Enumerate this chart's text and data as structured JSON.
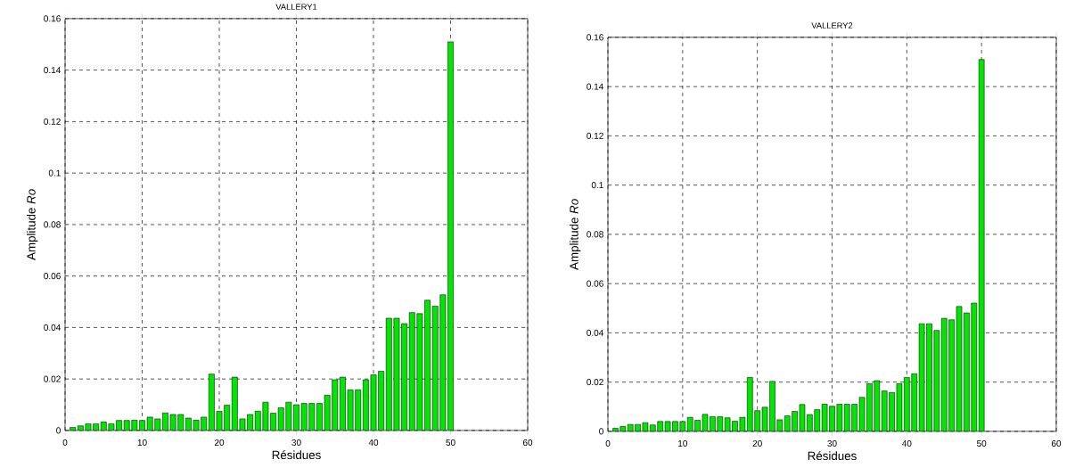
{
  "chart_data": [
    {
      "type": "bar",
      "title": "VALLERY1",
      "xlabel": "Résidues",
      "ylabel": "Amplitude *Ro*",
      "color": "#00e600",
      "x": [
        1,
        2,
        3,
        4,
        5,
        6,
        7,
        8,
        9,
        10,
        11,
        12,
        13,
        14,
        15,
        16,
        17,
        18,
        19,
        20,
        21,
        22,
        23,
        24,
        25,
        26,
        27,
        28,
        29,
        30,
        31,
        32,
        33,
        34,
        35,
        36,
        37,
        38,
        39,
        40,
        41,
        42,
        43,
        44,
        45,
        46,
        47,
        48,
        49,
        50
      ],
      "values": [
        0.0012,
        0.0018,
        0.0026,
        0.0026,
        0.0033,
        0.0026,
        0.0039,
        0.0039,
        0.004,
        0.0039,
        0.0052,
        0.0045,
        0.0068,
        0.0062,
        0.0062,
        0.0048,
        0.004,
        0.0052,
        0.0219,
        0.0074,
        0.0098,
        0.0207,
        0.0045,
        0.0062,
        0.0075,
        0.011,
        0.0067,
        0.0088,
        0.011,
        0.01,
        0.0105,
        0.0105,
        0.0105,
        0.0137,
        0.0197,
        0.0207,
        0.0158,
        0.0158,
        0.0197,
        0.0216,
        0.023,
        0.0436,
        0.0436,
        0.0415,
        0.0458,
        0.0454,
        0.0506,
        0.0483,
        0.0527,
        0.151
      ],
      "xlim": [
        0,
        60
      ],
      "ylim": [
        0,
        0.16
      ],
      "xticks": [
        0,
        10,
        20,
        30,
        40,
        50,
        60
      ],
      "yticks": [
        0,
        0.02,
        0.04,
        0.06,
        0.08,
        0.1,
        0.12,
        0.14,
        0.16
      ],
      "grid": true
    },
    {
      "type": "bar",
      "title": "VALLERY2",
      "xlabel": "Résidues",
      "ylabel": "Amplitude *Ro*",
      "color": "#00e600",
      "x": [
        1,
        2,
        3,
        4,
        5,
        6,
        7,
        8,
        9,
        10,
        11,
        12,
        13,
        14,
        15,
        16,
        17,
        18,
        19,
        20,
        21,
        22,
        23,
        24,
        25,
        26,
        27,
        28,
        29,
        30,
        31,
        32,
        33,
        34,
        35,
        36,
        37,
        38,
        39,
        40,
        41,
        42,
        43,
        44,
        45,
        46,
        47,
        48,
        49,
        50
      ],
      "values": [
        0.0012,
        0.002,
        0.0028,
        0.0028,
        0.0035,
        0.0026,
        0.004,
        0.004,
        0.004,
        0.004,
        0.0057,
        0.0045,
        0.0069,
        0.006,
        0.006,
        0.0055,
        0.0041,
        0.0057,
        0.0219,
        0.0084,
        0.0098,
        0.0203,
        0.0047,
        0.0063,
        0.0081,
        0.0109,
        0.0068,
        0.0088,
        0.011,
        0.0102,
        0.011,
        0.011,
        0.011,
        0.0138,
        0.0194,
        0.0206,
        0.0164,
        0.0158,
        0.0194,
        0.0219,
        0.0234,
        0.0437,
        0.0437,
        0.041,
        0.0459,
        0.0453,
        0.0507,
        0.0481,
        0.0521,
        0.151
      ],
      "xlim": [
        0,
        60
      ],
      "ylim": [
        0,
        0.16
      ],
      "xticks": [
        0,
        10,
        20,
        30,
        40,
        50,
        60
      ],
      "yticks": [
        0,
        0.02,
        0.04,
        0.06,
        0.08,
        0.1,
        0.12,
        0.14,
        0.16
      ],
      "grid": true
    }
  ]
}
